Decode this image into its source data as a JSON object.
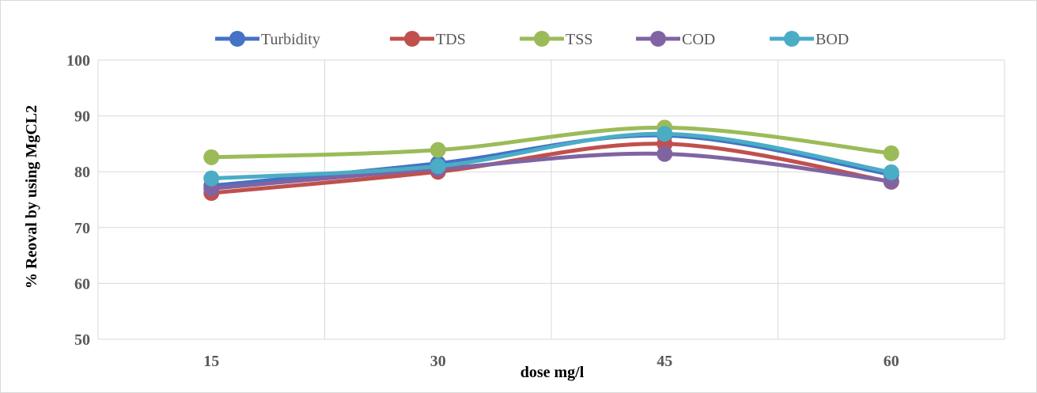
{
  "chart_data": {
    "type": "line",
    "title": "",
    "xlabel": "dose mg/l",
    "ylabel": "% Reoval by using MgCL2",
    "categories": [
      "15",
      "30",
      "45",
      "60"
    ],
    "ylim": [
      50,
      100
    ],
    "yticks": [
      50,
      60,
      70,
      80,
      90,
      100
    ],
    "grid": true,
    "smooth": true,
    "legend_position": "top",
    "series": [
      {
        "name": "Turbidity",
        "color": "#4472C4",
        "values": [
          77.5,
          81.5,
          86.5,
          79.5
        ]
      },
      {
        "name": "TDS",
        "color": "#C0504D",
        "values": [
          76.2,
          80.0,
          85.0,
          78.2
        ]
      },
      {
        "name": "TSS",
        "color": "#9BBB59",
        "values": [
          82.6,
          83.9,
          87.9,
          83.3
        ]
      },
      {
        "name": "COD",
        "color": "#8064A2",
        "values": [
          77.0,
          80.5,
          83.2,
          78.3
        ]
      },
      {
        "name": "BOD",
        "color": "#4BACC6",
        "values": [
          78.8,
          81.0,
          86.8,
          79.9
        ]
      }
    ]
  }
}
